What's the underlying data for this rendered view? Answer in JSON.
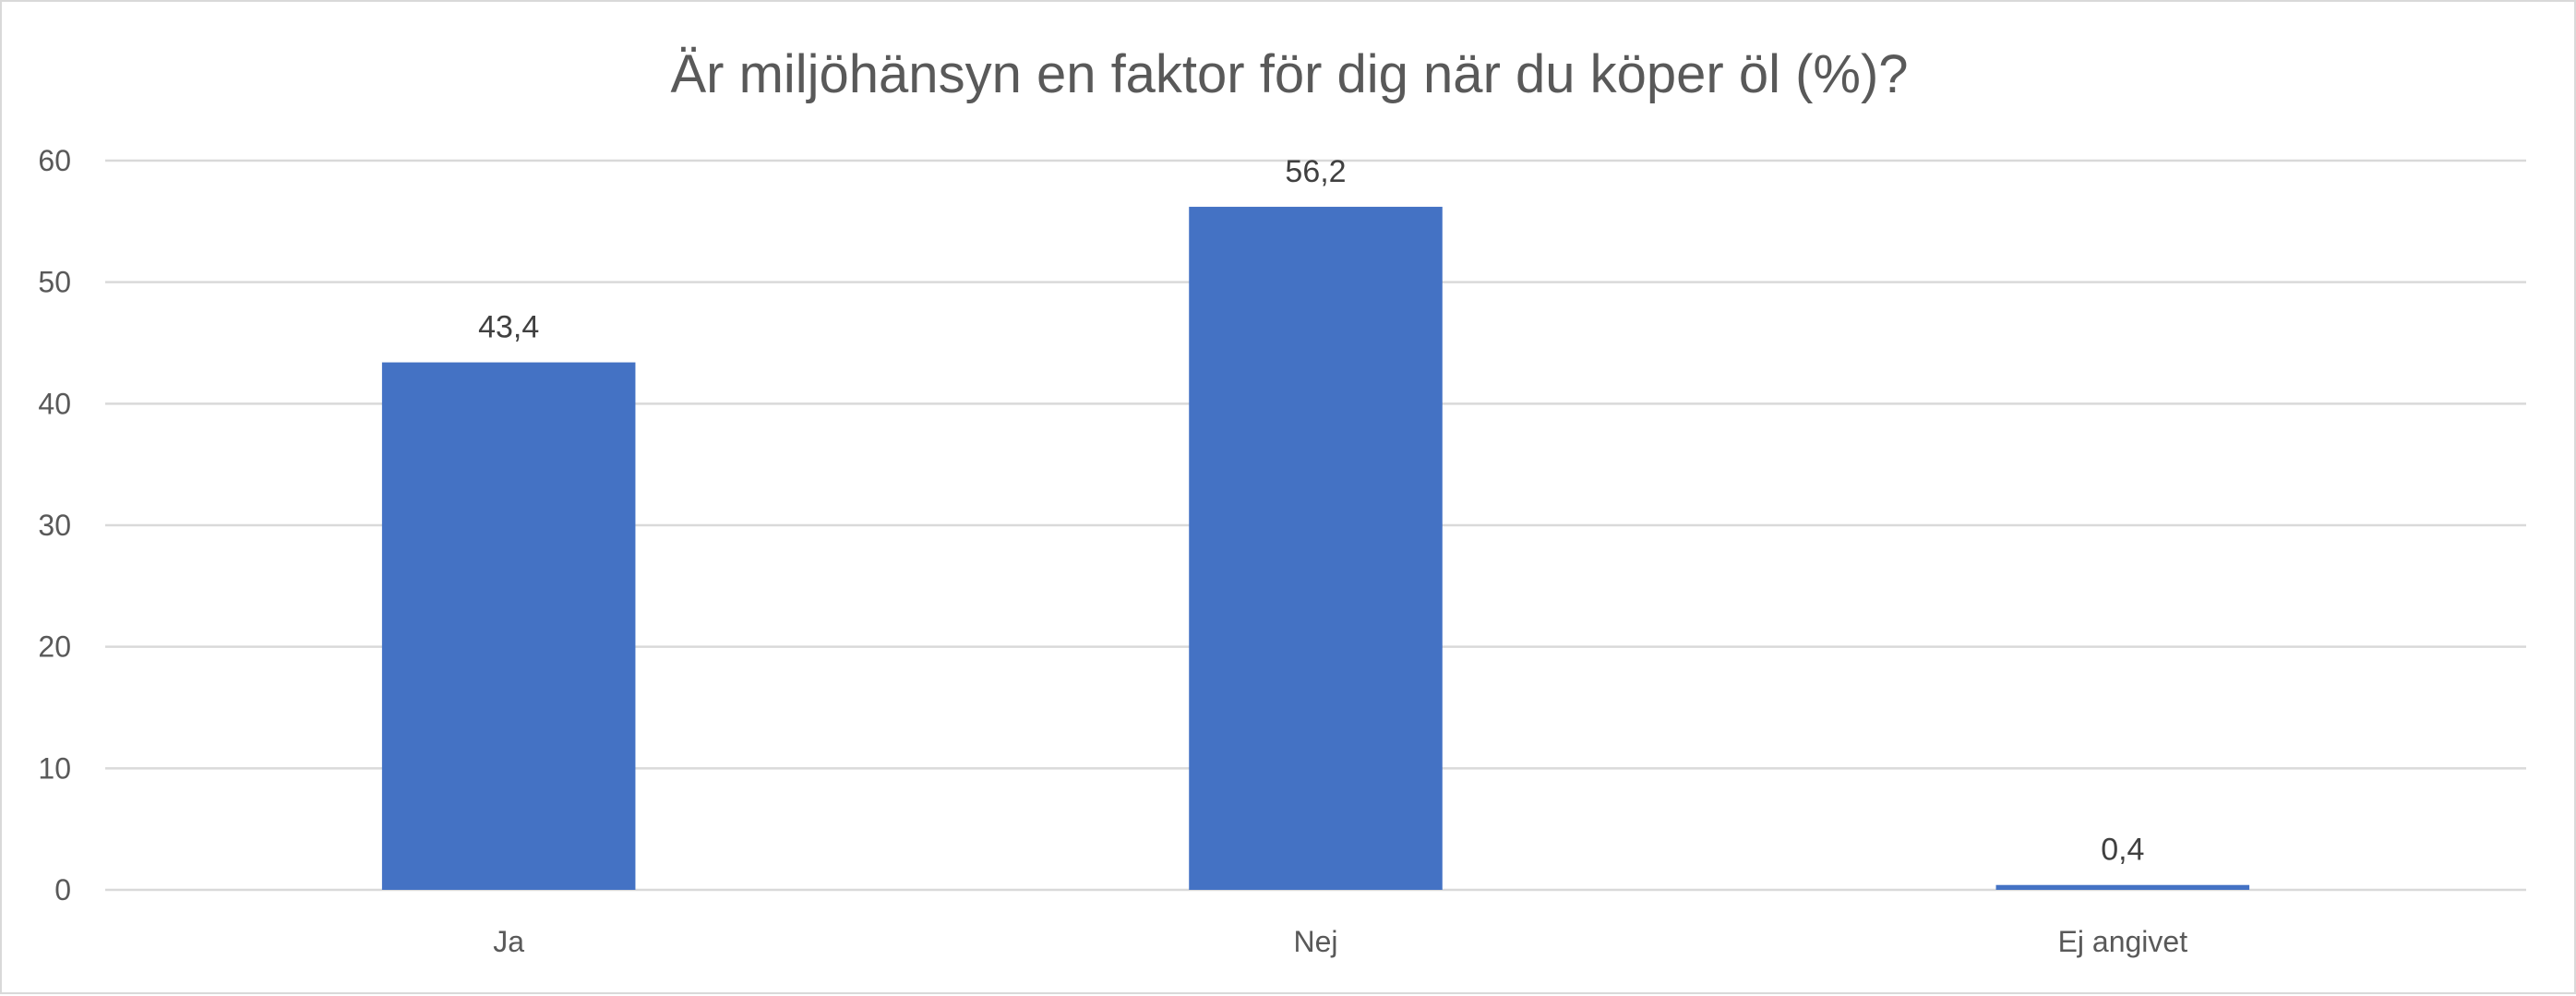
{
  "chart_data": {
    "type": "bar",
    "title": "Är miljöhänsyn en faktor för dig när du köper öl (%)?",
    "xlabel": "",
    "ylabel": "",
    "categories": [
      "Ja",
      "Nej",
      "Ej angivet"
    ],
    "values": [
      43.4,
      56.2,
      0.4
    ],
    "value_labels": [
      "43,4",
      "56,2",
      "0,4"
    ],
    "ylim": [
      0,
      60
    ],
    "yticks": [
      0,
      10,
      20,
      30,
      40,
      50,
      60
    ],
    "grid": true,
    "legend": "none",
    "bar_color": "#4472C4"
  }
}
